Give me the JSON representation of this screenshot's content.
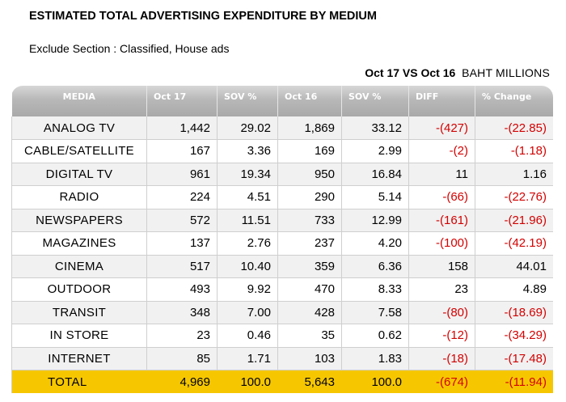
{
  "title": "ESTIMATED TOTAL ADVERTISING EXPENDITURE BY MEDIUM",
  "subtitle": "Exclude Section : Classified, House ads",
  "comparison": "Oct 17 VS Oct 16",
  "unit": "BAHT MILLIONS",
  "headers": [
    "MEDIA",
    "Oct 17",
    "SOV %",
    "Oct 16",
    "SOV %",
    "DIFF",
    "% Change"
  ],
  "rows": [
    {
      "media": "ANALOG   TV",
      "oct17": "1,442",
      "sov17": "29.02",
      "oct16": "1,869",
      "sov16": "33.12",
      "diff": "-(427)",
      "change": "-(22.85)"
    },
    {
      "media": "CABLE/SATELLITE",
      "oct17": "167",
      "sov17": "3.36",
      "oct16": "169",
      "sov16": "2.99",
      "diff": "-(2)",
      "change": "-(1.18)"
    },
    {
      "media": "DIGITAL TV",
      "oct17": "961",
      "sov17": "19.34",
      "oct16": "950",
      "sov16": "16.84",
      "diff": "11",
      "change": "1.16"
    },
    {
      "media": "RADIO",
      "oct17": "224",
      "sov17": "4.51",
      "oct16": "290",
      "sov16": "5.14",
      "diff": "-(66)",
      "change": "-(22.76)"
    },
    {
      "media": "NEWSPAPERS",
      "oct17": "572",
      "sov17": "11.51",
      "oct16": "733",
      "sov16": "12.99",
      "diff": "-(161)",
      "change": "-(21.96)"
    },
    {
      "media": "MAGAZINES",
      "oct17": "137",
      "sov17": "2.76",
      "oct16": "237",
      "sov16": "4.20",
      "diff": "-(100)",
      "change": "-(42.19)"
    },
    {
      "media": "CINEMA",
      "oct17": "517",
      "sov17": "10.40",
      "oct16": "359",
      "sov16": "6.36",
      "diff": "158",
      "change": "44.01"
    },
    {
      "media": "OUTDOOR",
      "oct17": "493",
      "sov17": "9.92",
      "oct16": "470",
      "sov16": "8.33",
      "diff": "23",
      "change": "4.89"
    },
    {
      "media": "TRANSIT",
      "oct17": "348",
      "sov17": "7.00",
      "oct16": "428",
      "sov16": "7.58",
      "diff": "-(80)",
      "change": "-(18.69)"
    },
    {
      "media": "IN STORE",
      "oct17": "23",
      "sov17": "0.46",
      "oct16": "35",
      "sov16": "0.62",
      "diff": "-(12)",
      "change": "-(34.29)"
    },
    {
      "media": "INTERNET",
      "oct17": "85",
      "sov17": "1.71",
      "oct16": "103",
      "sov16": "1.83",
      "diff": "-(18)",
      "change": "-(17.48)"
    }
  ],
  "total": {
    "media": "TOTAL",
    "oct17": "4,969",
    "sov17": "100.0",
    "oct16": "5,643",
    "sov16": "100.0",
    "diff": "-(674)",
    "change": "-(11.94)"
  },
  "colors": {
    "negative": "#d40000",
    "total_row": "#f6c700",
    "header": "#b8b8b8",
    "stripe": "#f1f1f1"
  }
}
